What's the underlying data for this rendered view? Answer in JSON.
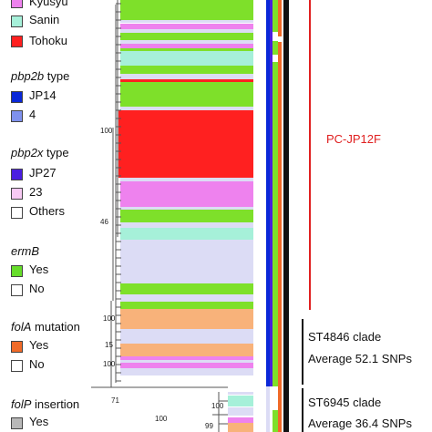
{
  "legend": {
    "region_items": [
      {
        "label": "Kyusyu",
        "color": "#ee82ee"
      },
      {
        "label": "Sanin",
        "color": "#a6f0d9"
      },
      {
        "label": "Tohoku",
        "color": "#ff2020"
      }
    ],
    "pbp2b": {
      "title_italic": "pbp2b",
      "title_rest": " type",
      "items": [
        {
          "label": "JP14",
          "color": "#0a28d8"
        },
        {
          "label": "4",
          "color": "#7f91ee"
        }
      ]
    },
    "pbp2x": {
      "title_italic": "pbp2x",
      "title_rest": " type",
      "items": [
        {
          "label": "JP27",
          "color": "#4a1ee0"
        },
        {
          "label": "23",
          "color": "#f7c9f3"
        },
        {
          "label": "Others",
          "color": "#ffffff"
        }
      ]
    },
    "ermB": {
      "title_italic": "ermB",
      "title_rest": "",
      "items": [
        {
          "label": "Yes",
          "color": "#66dd2a"
        },
        {
          "label": "No",
          "color": "#ffffff"
        }
      ]
    },
    "folA": {
      "title_italic": "folA",
      "title_rest": " mutation",
      "items": [
        {
          "label": "Yes",
          "color": "#f06a28"
        },
        {
          "label": "No",
          "color": "#ffffff"
        }
      ]
    },
    "folP": {
      "title_italic": "folP",
      "title_rest": " insertion",
      "items": [
        {
          "label": "Yes",
          "color": "#b8b8b8"
        }
      ]
    }
  },
  "tree": {
    "bootstrap_labels": [
      "100",
      "46",
      "100",
      "15",
      "100",
      "71",
      "100",
      "100",
      "99"
    ]
  },
  "clades": {
    "pc_jp12f": {
      "label": "PC-JP12F",
      "color": "#e02020"
    },
    "st4846": {
      "line1": "ST4846 clade",
      "line2": "Average 52.1 SNPs"
    },
    "st6945": {
      "line1": "ST6945 clade",
      "line2": "Average 36.4 SNPs"
    }
  },
  "colors": {
    "kyusyu": "#ee82ee",
    "sanin": "#a6f0d9",
    "tohoku": "#ff2020",
    "green": "#7ee02a",
    "lavender": "#dcdcf5",
    "peach": "#f8b27a",
    "blue": "#0a28d8",
    "purple": "#4a1ee0",
    "orange": "#f06a28",
    "black": "#111111"
  }
}
